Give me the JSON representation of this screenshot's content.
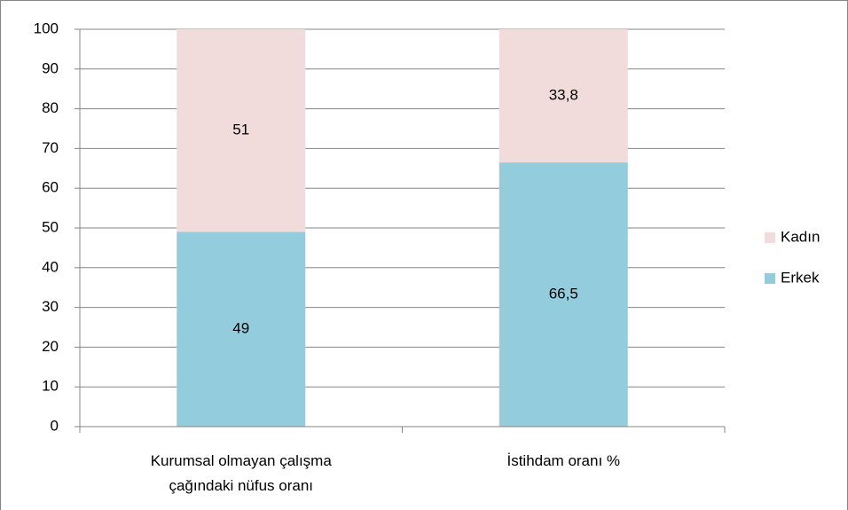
{
  "chart_data": {
    "type": "stacked_bar",
    "categories": [
      "Kurumsal olmayan çalışma çağındaki nüfus oranı",
      "İstihdam oranı %"
    ],
    "series": [
      {
        "name": "Erkek",
        "color": "#93cddd",
        "values": [
          49,
          66.5
        ],
        "value_labels": [
          "49",
          "66,5"
        ]
      },
      {
        "name": "Kadın",
        "color": "#f2dcdb",
        "values": [
          51,
          33.8
        ],
        "value_labels": [
          "51",
          "33,8"
        ]
      }
    ],
    "ylim": [
      0,
      100
    ],
    "yticks": [
      0,
      10,
      20,
      30,
      40,
      50,
      60,
      70,
      80,
      90,
      100
    ],
    "grid": true,
    "legend": "right"
  }
}
